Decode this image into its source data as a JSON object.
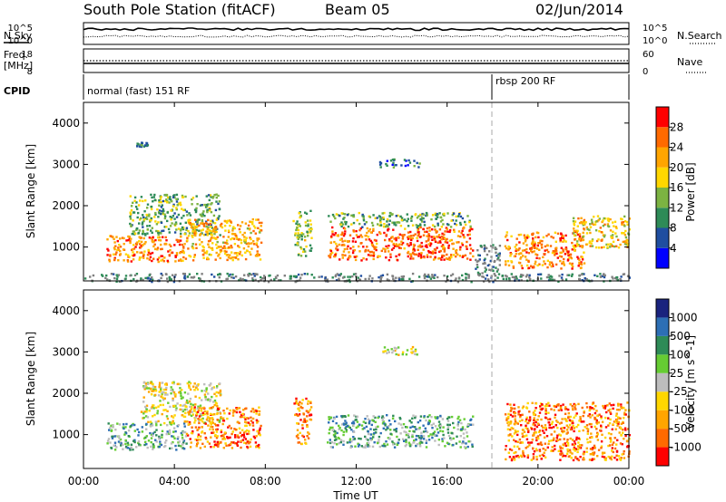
{
  "header": {
    "station": "South Pole Station (fitACF)",
    "beam": "Beam 05",
    "date": "02/Jun/2014"
  },
  "sky_panel": {
    "left_label": "N.Sky",
    "right_label": "N.Search",
    "ticks_left": [
      "10^5",
      "10^0"
    ],
    "ticks_right": [
      "10^5",
      "10^0"
    ]
  },
  "freq_panel": {
    "left_label_1": "Freq.",
    "left_label_2": "[MHz]",
    "right_label": "Nave",
    "ticks_left": [
      "18",
      "8"
    ],
    "ticks_right": [
      "60",
      "0"
    ]
  },
  "cpid_panel": {
    "label": "CPID",
    "modes": [
      {
        "name": "normal (fast) 151 RF",
        "start_hour": 0
      },
      {
        "name": "rbsp 200 RF",
        "start_hour": 18
      }
    ]
  },
  "x_axis": {
    "label": "Time UT",
    "tick_labels": [
      "00:00",
      "04:00",
      "08:00",
      "12:00",
      "16:00",
      "20:00",
      "00:00"
    ]
  },
  "colors": {
    "power_scale": [
      "#0000ff",
      "#1f4ea0",
      "#2e8b57",
      "#7cb342",
      "#ffd700",
      "#ffa500",
      "#ff6a00",
      "#ff0000"
    ],
    "velocity_scale": [
      "#1a237e",
      "#2d6fb5",
      "#2e8b57",
      "#66cc33",
      "#bdbdbd",
      "#ffd700",
      "#ffa500",
      "#ff6a00",
      "#ff0000"
    ],
    "ground_scatter": "#808080"
  },
  "chart_data": [
    {
      "type": "heatmap",
      "parameter": "Power",
      "ylabel": "Slant Range [km]",
      "xlabel": "Time UT",
      "xlim": [
        0,
        24
      ],
      "ylim": [
        180,
        4500
      ],
      "yticks": [
        1000,
        2000,
        3000,
        4000
      ],
      "colorbar": {
        "label": "Power [dB]",
        "range": [
          0,
          32
        ],
        "tick_labels": [
          "4",
          "8",
          "12",
          "16",
          "20",
          "24",
          "28"
        ],
        "tick_values": [
          4,
          8,
          12,
          16,
          20,
          24,
          28
        ]
      },
      "mode_change_hour": 18,
      "features": [
        {
          "t_start": 1.0,
          "t_end": 4.5,
          "range_low": 650,
          "range_high": 1300,
          "power": 26
        },
        {
          "t_start": 2.0,
          "t_end": 6.0,
          "range_low": 1300,
          "range_high": 2300,
          "power": 12
        },
        {
          "t_start": 4.5,
          "t_end": 7.8,
          "range_low": 700,
          "range_high": 1700,
          "power": 22
        },
        {
          "t_start": 9.2,
          "t_end": 10.0,
          "range_low": 800,
          "range_high": 1900,
          "power": 14
        },
        {
          "t_start": 10.7,
          "t_end": 17.1,
          "range_low": 700,
          "range_high": 1500,
          "power": 27
        },
        {
          "t_start": 10.7,
          "t_end": 17.0,
          "range_low": 1500,
          "range_high": 1850,
          "power": 12
        },
        {
          "t_start": 17.2,
          "t_end": 18.3,
          "range_low": 350,
          "range_high": 1100,
          "power": 8
        },
        {
          "t_start": 18.5,
          "t_end": 22.0,
          "range_low": 500,
          "range_high": 1400,
          "power": 26
        },
        {
          "t_start": 21.5,
          "t_end": 24.0,
          "range_low": 1000,
          "range_high": 1800,
          "power": 20
        },
        {
          "t_start": 2.3,
          "t_end": 2.8,
          "range_low": 3450,
          "range_high": 3550,
          "power": 6
        },
        {
          "t_start": 13.0,
          "t_end": 14.8,
          "range_low": 2950,
          "range_high": 3150,
          "power": 6
        },
        {
          "t_start": 0.0,
          "t_end": 24.0,
          "range_low": 180,
          "range_high": 380,
          "power": 10
        }
      ]
    },
    {
      "type": "heatmap",
      "parameter": "Velocity",
      "ylabel": "Slant Range [km]",
      "xlabel": "Time UT",
      "xlim": [
        0,
        24
      ],
      "ylim": [
        180,
        4500
      ],
      "yticks": [
        1000,
        2000,
        3000,
        4000
      ],
      "colorbar": {
        "label": "Velocity [m s^-1]",
        "tick_labels": [
          "1000",
          "500",
          "100",
          "25",
          "-25",
          "-100",
          "-500",
          "-1000"
        ],
        "tick_values": [
          1000,
          500,
          100,
          25,
          -25,
          -100,
          -500,
          -1000
        ]
      },
      "mode_change_hour": 18,
      "features": [
        {
          "t_start": 1.0,
          "t_end": 4.5,
          "range_low": 650,
          "range_high": 1300,
          "velocity": 150
        },
        {
          "t_start": 2.5,
          "t_end": 6.0,
          "range_low": 1300,
          "range_high": 2300,
          "velocity": 0
        },
        {
          "t_start": 4.5,
          "t_end": 7.8,
          "range_low": 700,
          "range_high": 1700,
          "velocity": -200
        },
        {
          "t_start": 9.2,
          "t_end": 10.0,
          "range_low": 800,
          "range_high": 1900,
          "velocity": -300
        },
        {
          "t_start": 10.7,
          "t_end": 17.1,
          "range_low": 700,
          "range_high": 1500,
          "velocity": 300
        },
        {
          "t_start": 18.5,
          "t_end": 24.0,
          "range_low": 400,
          "range_high": 1800,
          "velocity": -400
        },
        {
          "t_start": 13.0,
          "t_end": 14.8,
          "range_low": 2950,
          "range_high": 3150,
          "velocity": 0
        }
      ]
    }
  ]
}
